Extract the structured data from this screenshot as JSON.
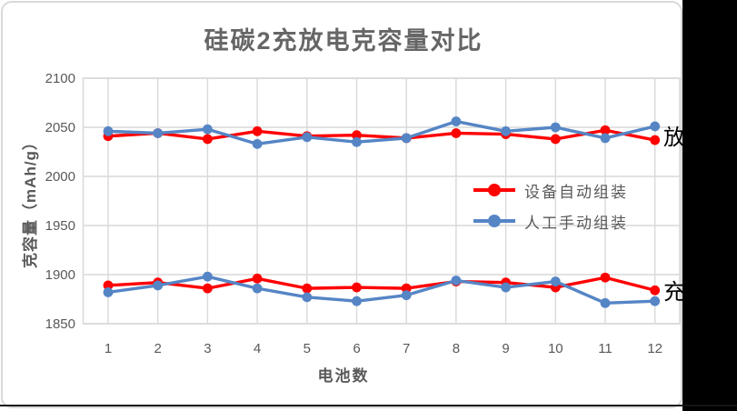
{
  "title": "硅碳2充放电克容量对比",
  "axes": {
    "y_title": "克容量（mAh/g）",
    "x_title": "电池数",
    "y_ticks": [
      2100,
      2050,
      2000,
      1950,
      1900,
      1850
    ],
    "x_ticks": [
      1,
      2,
      3,
      4,
      5,
      6,
      7,
      8,
      9,
      10,
      11,
      12
    ]
  },
  "legend": [
    {
      "label": "设备自动组装",
      "color": "#ff0000"
    },
    {
      "label": "人工手动组装",
      "color": "#5585c5"
    }
  ],
  "right_labels": {
    "discharge": "放",
    "charge": "充"
  },
  "colors": {
    "grid": "#d9d9d9",
    "axis_text": "#595959",
    "title_text": "#666666",
    "series_red": "#ff0000",
    "series_blue": "#5585c5",
    "cutoff_label": "#000000"
  },
  "chart_data": {
    "type": "line",
    "title": "硅碳2充放电克容量对比",
    "xlabel": "电池数",
    "ylabel": "克容量（mAh/g）",
    "x": [
      1,
      2,
      3,
      4,
      5,
      6,
      7,
      8,
      9,
      10,
      11,
      12
    ],
    "ylim": [
      1850,
      2100
    ],
    "grid": true,
    "legend_position": "center-right",
    "series": [
      {
        "name": "设备自动组装(放电)",
        "color": "#ff0000",
        "values": [
          2041,
          2044,
          2038,
          2046,
          2041,
          2042,
          2039,
          2044,
          2043,
          2038,
          2047,
          2037
        ]
      },
      {
        "name": "人工手动组装(放电)",
        "color": "#5585c5",
        "values": [
          2046,
          2044,
          2048,
          2033,
          2040,
          2035,
          2039,
          2056,
          2046,
          2050,
          2039,
          2051
        ]
      },
      {
        "name": "设备自动组装(充电)",
        "color": "#ff0000",
        "values": [
          1889,
          1892,
          1886,
          1896,
          1886,
          1887,
          1886,
          1893,
          1892,
          1887,
          1897,
          1884
        ]
      },
      {
        "name": "人工手动组装(充电)",
        "color": "#5585c5",
        "values": [
          1882,
          1889,
          1898,
          1886,
          1877,
          1873,
          1879,
          1894,
          1887,
          1893,
          1871,
          1873
        ]
      }
    ]
  }
}
